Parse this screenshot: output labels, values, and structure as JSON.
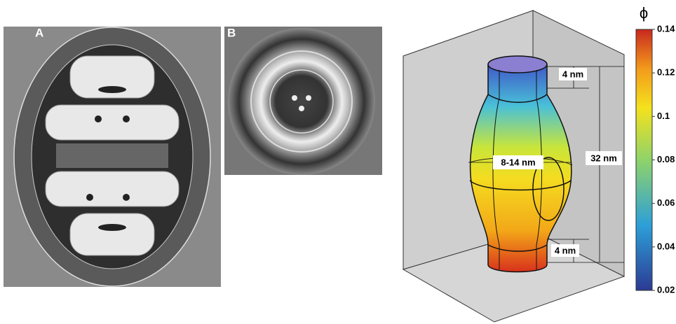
{
  "panels": {
    "a": {
      "label": "A"
    },
    "b": {
      "label": "B"
    }
  },
  "diagram": {
    "top_height": "4 nm",
    "total_height": "32 nm",
    "diameter": "8-14 nm",
    "bottom_height": "4 nm"
  },
  "colorbar": {
    "label": "ϕ",
    "lim": [
      0.02,
      0.14
    ],
    "ticks": [
      0.14,
      0.12,
      0.1,
      0.08,
      0.06,
      0.04,
      0.02
    ]
  }
}
